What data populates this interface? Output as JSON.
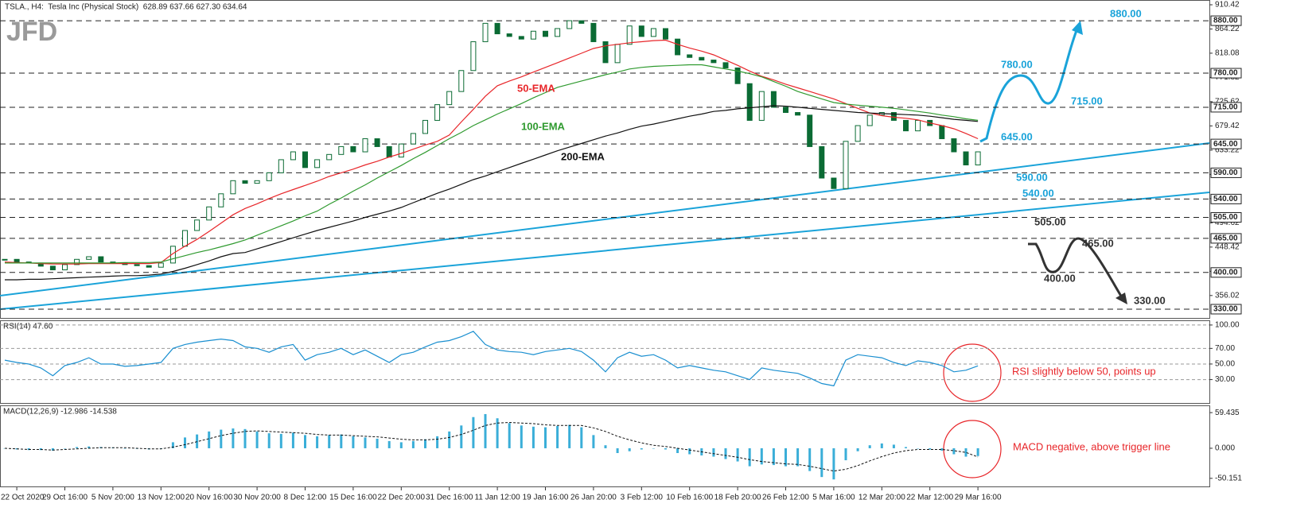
{
  "logo": "JFD",
  "chart_data": [
    {
      "type": "candlestick",
      "title": "TSLA., H4:  Tesla Inc (Physical Stock)  628.89 637.66 627.30 634.64",
      "categories": [
        null,
        "22 Oct 2020",
        null,
        null,
        null,
        "29 Oct 16:00",
        null,
        null,
        null,
        "5 Nov 20:00",
        null,
        null,
        null,
        "13 Nov 12:00",
        null,
        null,
        null,
        "20 Nov 16:00",
        null,
        null,
        null,
        "30 Nov 20:00",
        null,
        null,
        null,
        "8 Dec 12:00",
        null,
        null,
        null,
        "15 Dec 16:00",
        null,
        null,
        null,
        "22 Dec 20:00",
        null,
        null,
        null,
        "31 Dec 16:00",
        null,
        null,
        null,
        "11 Jan 12:00",
        null,
        null,
        null,
        "19 Jan 16:00",
        null,
        null,
        null,
        "26 Jan 20:00",
        null,
        null,
        null,
        "3 Feb 12:00",
        null,
        null,
        null,
        "10 Feb 16:00",
        null,
        null,
        null,
        "18 Feb 20:00",
        null,
        null,
        null,
        "26 Feb 12:00",
        null,
        null,
        null,
        "5 Mar 16:00",
        null,
        null,
        null,
        "12 Mar 20:00",
        null,
        null,
        null,
        "22 Mar 12:00",
        null,
        null,
        null,
        "29 Mar 16:00"
      ],
      "values": [
        425,
        420,
        418,
        412,
        405,
        415,
        425,
        430,
        420,
        418,
        415,
        413,
        410,
        418,
        450,
        480,
        500,
        525,
        550,
        575,
        570,
        575,
        590,
        615,
        630,
        600,
        615,
        625,
        640,
        630,
        655,
        640,
        620,
        645,
        665,
        690,
        720,
        745,
        785,
        840,
        875,
        855,
        850,
        845,
        860,
        850,
        865,
        880,
        875,
        840,
        800,
        835,
        870,
        850,
        865,
        845,
        815,
        810,
        805,
        800,
        790,
        760,
        690,
        745,
        715,
        705,
        700,
        640,
        580,
        560,
        650,
        680,
        700,
        705,
        690,
        670,
        690,
        680,
        655,
        630,
        605,
        630
      ],
      "up_color": "#ffffff",
      "down_color": "#0b6b34",
      "edge_color": "#0b6b34",
      "ema": [
        {
          "name": "50-EMA",
          "color": "#e8262a",
          "values": [
            420,
            419,
            418,
            417,
            416,
            416,
            416,
            417,
            417,
            417,
            417,
            417,
            417,
            419,
            436,
            450,
            463,
            478,
            494,
            510,
            522,
            531,
            541,
            550,
            558,
            566,
            574,
            583,
            590,
            597,
            605,
            612,
            620,
            627,
            635,
            643,
            650,
            662,
            687,
            711,
            736,
            756,
            765,
            773,
            782,
            791,
            800,
            809,
            818,
            827,
            832,
            835,
            838,
            840,
            842,
            843,
            835,
            828,
            822,
            815,
            805,
            795,
            784,
            774,
            767,
            759,
            752,
            745,
            738,
            731,
            722,
            713,
            704,
            699,
            696,
            694,
            691,
            685,
            680,
            674,
            665,
            655
          ]
        },
        {
          "name": "100-EMA",
          "color": "#2f9a2f",
          "values": [
            418,
            418,
            418,
            418,
            418,
            418,
            418,
            418,
            418,
            418,
            419,
            419,
            419,
            420,
            426,
            432,
            438,
            443,
            449,
            455,
            462,
            471,
            480,
            489,
            498,
            508,
            517,
            530,
            542,
            555,
            567,
            580,
            592,
            604,
            617,
            629,
            642,
            655,
            667,
            680,
            691,
            702,
            712,
            722,
            733,
            743,
            753,
            759,
            765,
            771,
            777,
            782,
            788,
            791,
            793,
            794,
            795,
            796,
            796,
            792,
            788,
            784,
            779,
            773,
            764,
            755,
            745,
            738,
            731,
            724,
            721,
            719,
            717,
            715,
            713,
            710,
            707,
            704,
            700,
            697,
            693,
            690
          ]
        },
        {
          "name": "200-EMA",
          "color": "#111111",
          "values": [
            386,
            386,
            387,
            387,
            388,
            389,
            390,
            391,
            392,
            393,
            394,
            394,
            395,
            397,
            402,
            408,
            415,
            422,
            430,
            436,
            438,
            445,
            452,
            459,
            466,
            473,
            480,
            486,
            492,
            498,
            505,
            511,
            517,
            524,
            533,
            542,
            551,
            559,
            568,
            577,
            584,
            592,
            600,
            608,
            616,
            624,
            632,
            639,
            646,
            653,
            660,
            666,
            673,
            679,
            683,
            688,
            693,
            698,
            702,
            707,
            709,
            712,
            714,
            716,
            718,
            717,
            715,
            713,
            711,
            709,
            707,
            705,
            704,
            703,
            702,
            701,
            700,
            698,
            695,
            692,
            690,
            688
          ]
        }
      ],
      "ylim": [
        313.3,
        919.5
      ],
      "yticks": [
        910.42,
        864.22,
        818.08,
        771.82,
        725.62,
        679.42,
        633.22,
        587.02,
        540.82,
        494.62,
        448.42,
        402.22,
        356.02
      ],
      "levels": [
        {
          "value": 880,
          "label": "880.00"
        },
        {
          "value": 780,
          "label": "780.00"
        },
        {
          "value": 715,
          "label": "715.00"
        },
        {
          "value": 645,
          "label": "645.00"
        },
        {
          "value": 590,
          "label": "590.00"
        },
        {
          "value": 540,
          "label": "540.00"
        },
        {
          "value": 505,
          "label": "505.00"
        },
        {
          "value": 465,
          "label": "465.00"
        },
        {
          "value": 400,
          "label": "400.00"
        },
        {
          "value": 330,
          "label": "330.00"
        }
      ],
      "annotations": [
        {
          "text": "880.00",
          "color": "#1aa3d9"
        },
        {
          "text": "780.00",
          "color": "#1aa3d9"
        },
        {
          "text": "715.00",
          "color": "#1aa3d9"
        },
        {
          "text": "645.00",
          "color": "#1aa3d9"
        },
        {
          "text": "590.00",
          "color": "#1aa3d9"
        },
        {
          "text": "540.00",
          "color": "#1aa3d9"
        },
        {
          "text": "505.00",
          "color": "#333333"
        },
        {
          "text": "465.00",
          "color": "#333333"
        },
        {
          "text": "400.00",
          "color": "#333333"
        },
        {
          "text": "330.00",
          "color": "#333333"
        }
      ]
    },
    {
      "type": "line",
      "title": "RSI(14) 47.60",
      "color": "#1a8fd0",
      "values": [
        55,
        52,
        50,
        45,
        35,
        48,
        52,
        58,
        50,
        50,
        47,
        48,
        50,
        52,
        70,
        75,
        78,
        80,
        82,
        80,
        72,
        70,
        65,
        72,
        75,
        55,
        62,
        65,
        70,
        62,
        68,
        60,
        52,
        62,
        65,
        72,
        78,
        80,
        85,
        92,
        75,
        68,
        66,
        65,
        62,
        66,
        68,
        70,
        66,
        55,
        40,
        58,
        65,
        60,
        62,
        55,
        45,
        48,
        45,
        42,
        40,
        35,
        30,
        45,
        42,
        40,
        38,
        32,
        25,
        22,
        55,
        62,
        60,
        58,
        52,
        48,
        54,
        52,
        48,
        40,
        42,
        47.6
      ],
      "ylim": [
        -1,
        105
      ],
      "yticks": [
        {
          "value": 100,
          "label": "100.00"
        },
        {
          "value": 70,
          "label": "70.00"
        },
        {
          "value": 50,
          "label": "50.00"
        },
        {
          "value": 30,
          "label": "30.00"
        }
      ],
      "annotation": "RSI slightly below 50, points up"
    },
    {
      "type": "bar",
      "title": "MACD(12,26,9) -12.986 -14.538",
      "color": "#3aaed8",
      "signal_color": "#111111",
      "values": [
        0,
        -2,
        -3,
        -3,
        -4,
        0,
        2,
        3,
        2,
        1,
        0,
        -1,
        -2,
        -1,
        10,
        18,
        23,
        28,
        31,
        33,
        32,
        28,
        25,
        24,
        26,
        22,
        20,
        22,
        23,
        20,
        18,
        16,
        12,
        10,
        12,
        15,
        20,
        28,
        38,
        52,
        57,
        50,
        42,
        38,
        36,
        35,
        37,
        39,
        35,
        22,
        5,
        -8,
        -5,
        -2,
        0,
        -2,
        -8,
        -10,
        -12,
        -14,
        -18,
        -22,
        -30,
        -27,
        -28,
        -30,
        -30,
        -38,
        -48,
        -52,
        -20,
        -5,
        5,
        8,
        6,
        2,
        0,
        -2,
        -4,
        -10,
        -14,
        -13
      ],
      "signal_values": [
        0,
        -1,
        -2,
        -2,
        -3,
        -2,
        -1,
        0,
        1,
        1,
        1,
        0,
        -1,
        -1,
        2,
        6,
        11,
        16,
        21,
        25,
        28,
        29,
        28,
        27,
        26,
        25,
        23,
        22,
        22,
        21,
        20,
        19,
        17,
        15,
        14,
        14,
        15,
        18,
        23,
        30,
        38,
        42,
        43,
        42,
        41,
        39,
        38,
        38,
        38,
        34,
        28,
        20,
        14,
        9,
        5,
        3,
        0,
        -3,
        -6,
        -9,
        -12,
        -15,
        -19,
        -22,
        -24,
        -26,
        -27,
        -30,
        -34,
        -38,
        -35,
        -29,
        -21,
        -14,
        -8,
        -4,
        -2,
        -2,
        -2,
        -4,
        -7,
        -14.5
      ],
      "ylim": [
        -65,
        70.2
      ],
      "yticks": [
        59.435,
        {
          "value": 0,
          "label": "0.000"
        },
        -50.151
      ],
      "annotation": "MACD negative, above trigger line"
    }
  ]
}
